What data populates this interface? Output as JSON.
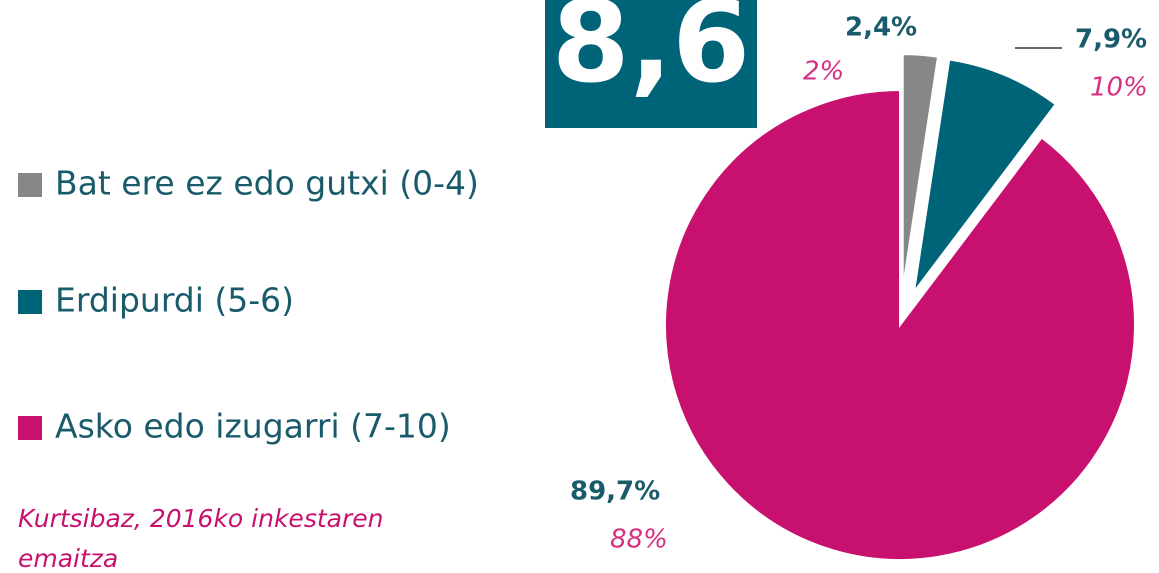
{
  "chart_data": {
    "type": "pie",
    "badge": "8,6",
    "categories": [
      "Bat ere ez edo gutxi (0-4)",
      "Erdipurdi (5-6)",
      "Asko edo izugarri (7-10)"
    ],
    "values": [
      2.4,
      7.9,
      89.7
    ],
    "value_labels": [
      "2,4%",
      "7,9%",
      "89,7%"
    ],
    "colors": [
      "#878787",
      "#006478",
      "#c8106e"
    ],
    "comparison_values": [
      2,
      10,
      88
    ],
    "comparison_labels": [
      "2%",
      "10%",
      "88%"
    ],
    "annotation": "Kurtsibaz, 2016ko inkestaren emaitza"
  }
}
